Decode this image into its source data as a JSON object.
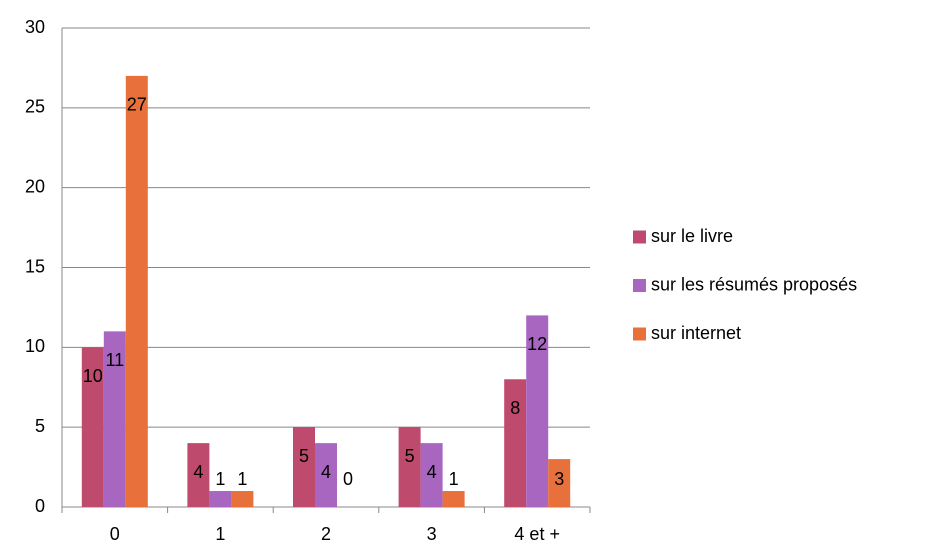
{
  "chart_data": {
    "type": "bar",
    "categories": [
      "0",
      "1",
      "2",
      "3",
      "4 et +"
    ],
    "series": [
      {
        "name": "sur le livre",
        "color": "#be4b6e",
        "values": [
          10,
          4,
          5,
          5,
          8
        ]
      },
      {
        "name": "sur les résumés proposés",
        "color": "#a866c0",
        "values": [
          11,
          1,
          4,
          4,
          12
        ]
      },
      {
        "name": "sur internet",
        "color": "#e8703a",
        "values": [
          27,
          1,
          0,
          1,
          3
        ]
      }
    ],
    "ylim": [
      0,
      30
    ],
    "yticks": [
      0,
      5,
      10,
      15,
      20,
      25,
      30
    ],
    "grid": true,
    "legend": "right"
  }
}
